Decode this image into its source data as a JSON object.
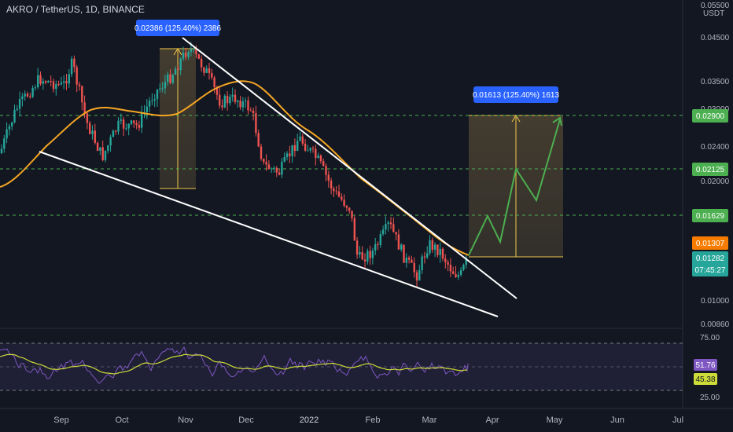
{
  "header": {
    "symbol_title": "AKRO / TetherUS, 1D, BINANCE",
    "currency_label": "USDT"
  },
  "measure_labels": {
    "left": "0.02386 (125.40%) 2386",
    "right": "0.01613 (125.40%) 1613"
  },
  "price_axis": {
    "ticks": [
      "0.05500",
      "0.04500",
      "0.03500",
      "0.03000",
      "0.02400",
      "0.02000",
      "0.01000",
      "0.00860"
    ],
    "badges": [
      {
        "text": "0.02900",
        "color": "#4caf50"
      },
      {
        "text": "0.02125",
        "color": "#4caf50"
      },
      {
        "text": "0.01629",
        "color": "#4caf50"
      },
      {
        "text": "0.01307",
        "color": "#f57c00"
      },
      {
        "text": "0.01282",
        "color": "#26a69a"
      },
      {
        "text": "07:45:27",
        "color": "#26a69a"
      }
    ]
  },
  "rsi_axis": {
    "ticks": [
      "75.00",
      "25.00"
    ],
    "badges": [
      {
        "text": "51.76",
        "color": "#7e57c2"
      },
      {
        "text": "45.38",
        "color": "#cddc39"
      }
    ]
  },
  "time_axis": [
    "Sep",
    "Oct",
    "Nov",
    "Dec",
    "2022",
    "Feb",
    "Mar",
    "Apr",
    "May",
    "Jun",
    "Jul"
  ],
  "chart_data": {
    "type": "line",
    "title": "AKRO / TetherUS, 1D, BINANCE",
    "price_scale": "log",
    "ylim": [
      0.0086,
      0.055
    ],
    "x": [
      "Sep",
      "Oct",
      "Nov",
      "Dec",
      "2022",
      "Feb",
      "Mar",
      "Apr",
      "May",
      "Jun",
      "Jul"
    ],
    "series": [
      {
        "name": "",
        "values": [
          0.0285,
          0.0282,
          0.0395,
          0.0285,
          0.025,
          0.0125,
          0.014,
          null,
          null,
          null,
          null
        ]
      },
      {
        "name": "",
        "values": [
          0.025,
          0.029,
          0.032,
          0.034,
          0.025,
          0.0175,
          0.015,
          null,
          null,
          null,
          null
        ]
      }
    ],
    "horizontal_levels": [
      0.029,
      0.02125,
      0.01629
    ],
    "current_price": 0.01282,
    "ma_value": 0.01307,
    "rsi": {
      "ylim": [
        25,
        75
      ],
      "rsi_value": 51.76,
      "signal_value": 45.38
    }
  }
}
